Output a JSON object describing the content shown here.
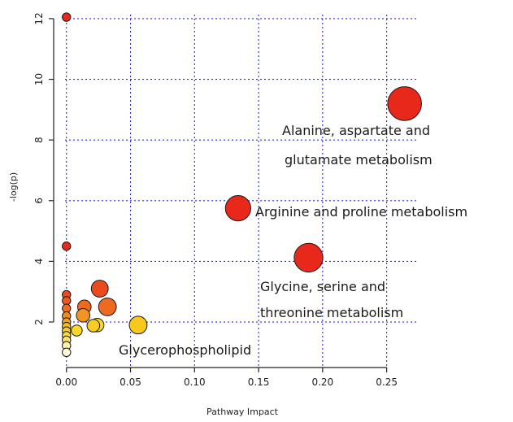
{
  "chart_data": {
    "type": "scatter",
    "title": "",
    "xlabel": "Pathway Impact",
    "ylabel": "-log(p)",
    "xlim": [
      -0.01,
      0.275
    ],
    "ylim": [
      0.5,
      12.4
    ],
    "x_ticks": [
      "0.00",
      "0.05",
      "0.10",
      "0.15",
      "0.20",
      "0.25"
    ],
    "x_tick_values": [
      0,
      0.05,
      0.1,
      0.15,
      0.2,
      0.25
    ],
    "y_ticks": [
      "2",
      "4",
      "6",
      "8",
      "10",
      "12"
    ],
    "y_tick_values": [
      2,
      4,
      6,
      8,
      10,
      12
    ],
    "grid": true,
    "grid_color": "#2a2ad8",
    "points": [
      {
        "x": 0.0,
        "y": 12.05,
        "size": 1.0,
        "color": "#e8281a"
      },
      {
        "x": 0.264,
        "y": 9.2,
        "size": 4.0,
        "color": "#e8281a"
      },
      {
        "x": 0.134,
        "y": 5.75,
        "size": 3.0,
        "color": "#e8281a"
      },
      {
        "x": 0.189,
        "y": 4.12,
        "size": 3.4,
        "color": "#e8281a"
      },
      {
        "x": 0.0,
        "y": 4.5,
        "size": 1.0,
        "color": "#e8281a"
      },
      {
        "x": 0.026,
        "y": 3.1,
        "size": 2.0,
        "color": "#ea4a1c"
      },
      {
        "x": 0.032,
        "y": 2.5,
        "size": 2.1,
        "color": "#ee6a20"
      },
      {
        "x": 0.014,
        "y": 2.5,
        "size": 1.6,
        "color": "#ee6a20"
      },
      {
        "x": 0.013,
        "y": 2.22,
        "size": 1.6,
        "color": "#f29422"
      },
      {
        "x": 0.0,
        "y": 2.9,
        "size": 1.0,
        "color": "#eb4a1c"
      },
      {
        "x": 0.0,
        "y": 2.7,
        "size": 1.0,
        "color": "#ec5a1e"
      },
      {
        "x": 0.0,
        "y": 2.45,
        "size": 1.0,
        "color": "#ee6c20"
      },
      {
        "x": 0.0,
        "y": 2.2,
        "size": 1.0,
        "color": "#f08a22"
      },
      {
        "x": 0.0,
        "y": 2.0,
        "size": 1.0,
        "color": "#f3a423"
      },
      {
        "x": 0.0,
        "y": 1.85,
        "size": 1.0,
        "color": "#f6bc24"
      },
      {
        "x": 0.0,
        "y": 1.7,
        "size": 1.0,
        "color": "#f8cc2a"
      },
      {
        "x": 0.0,
        "y": 1.55,
        "size": 1.0,
        "color": "#fad83a"
      },
      {
        "x": 0.0,
        "y": 1.4,
        "size": 1.0,
        "color": "#fce46a"
      },
      {
        "x": 0.0,
        "y": 1.22,
        "size": 1.0,
        "color": "#fdf0a8"
      },
      {
        "x": 0.0,
        "y": 1.0,
        "size": 1.0,
        "color": "#fefadc"
      },
      {
        "x": 0.021,
        "y": 1.88,
        "size": 1.5,
        "color": "#f8cc24"
      },
      {
        "x": 0.024,
        "y": 1.9,
        "size": 1.6,
        "color": "#fad824"
      },
      {
        "x": 0.008,
        "y": 1.72,
        "size": 1.3,
        "color": "#fbd828"
      },
      {
        "x": 0.056,
        "y": 1.9,
        "size": 2.1,
        "color": "#f8c81c"
      }
    ],
    "annotations": [
      {
        "lines": [
          "Alanine, aspartate and",
          "glutamate metabolism"
        ]
      },
      {
        "lines": [
          "Arginine and proline metabolism"
        ]
      },
      {
        "lines": [
          "Glycine, serine and",
          "threonine metabolism"
        ]
      },
      {
        "lines": [
          "Glycerophospholipid"
        ]
      }
    ]
  }
}
